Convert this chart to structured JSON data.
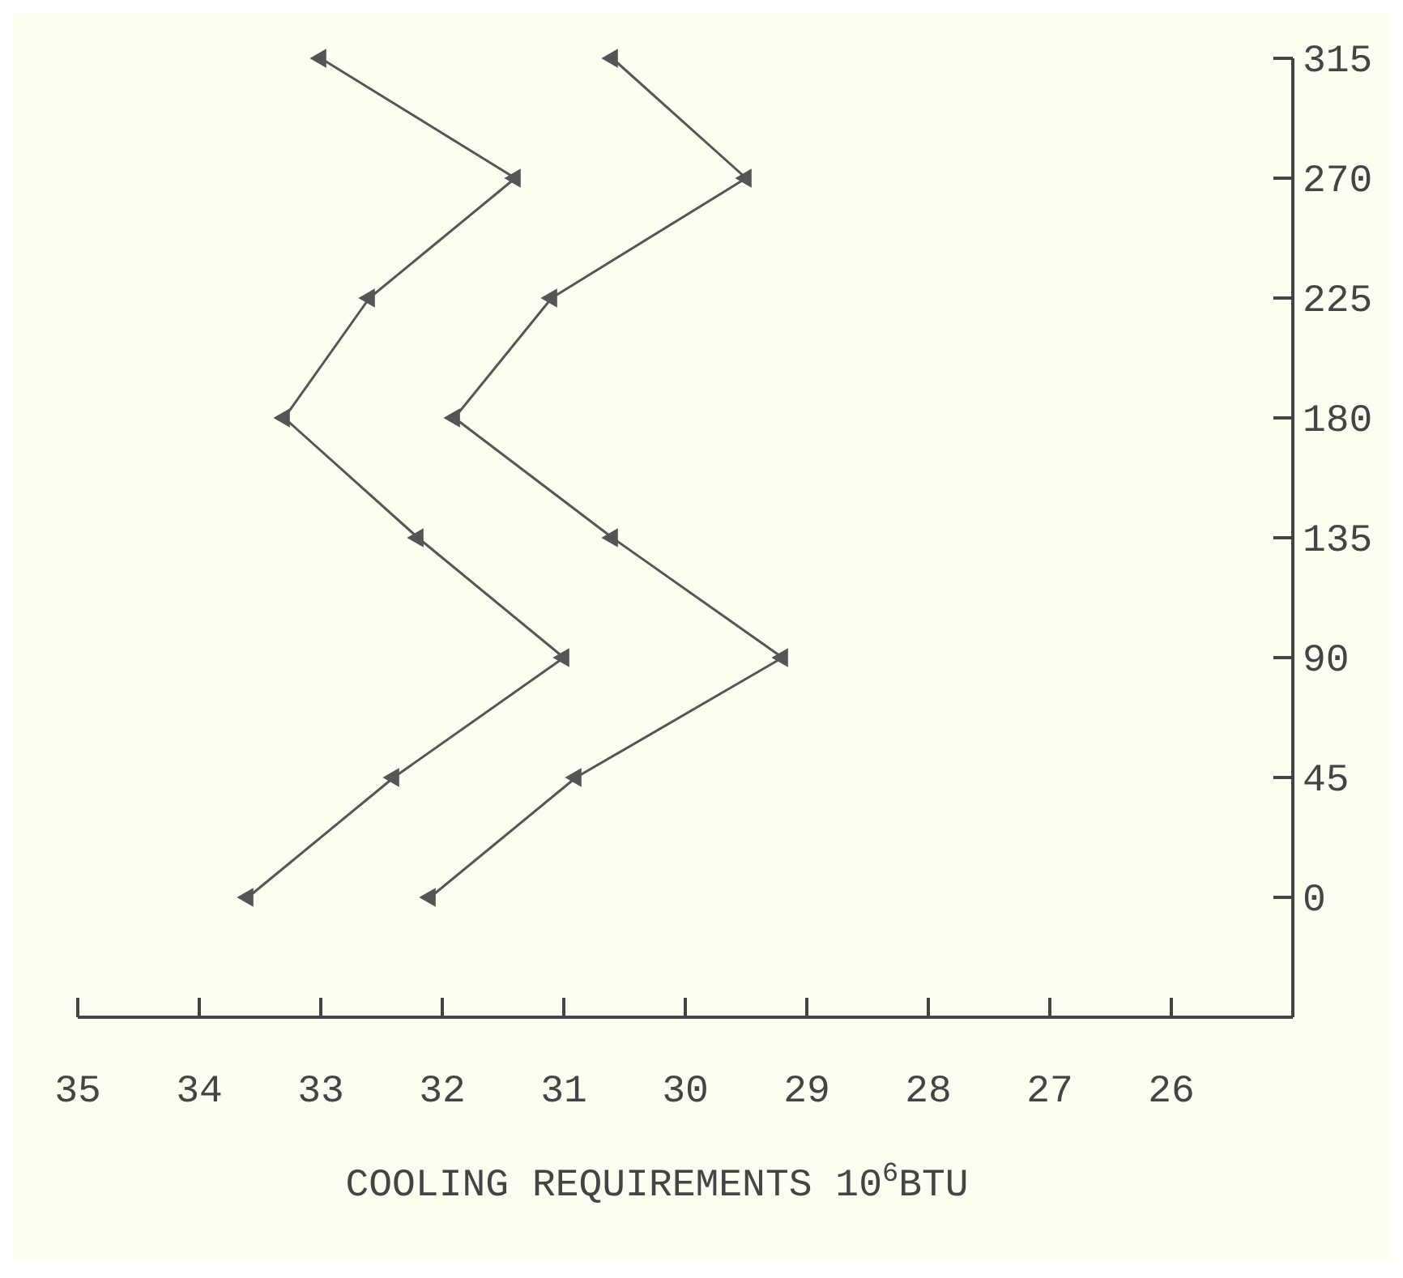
{
  "chart_data": {
    "type": "line",
    "xlabel": "COOLING REQUIREMENTS   10$^{6}$BTU",
    "xlim": [
      35,
      25
    ],
    "xticks": [
      35,
      34,
      33,
      32,
      31,
      30,
      29,
      28,
      27,
      26
    ],
    "ylim": [
      -45,
      315
    ],
    "yticks": [
      0,
      45,
      90,
      135,
      180,
      225,
      270,
      315
    ],
    "marker": "triangle",
    "line_style": "solid",
    "grid": false,
    "series": [
      {
        "color": "#555555",
        "x": [
          33.6,
          32.4,
          31.0,
          32.2,
          33.3,
          32.6,
          31.4,
          33.0
        ],
        "values": [
          0,
          45,
          90,
          135,
          180,
          225,
          270,
          315
        ]
      },
      {
        "color": "#555555",
        "x": [
          32.1,
          30.9,
          29.2,
          30.6,
          31.9,
          31.1,
          29.5,
          30.6
        ],
        "values": [
          0,
          45,
          90,
          135,
          180,
          225,
          270,
          315
        ]
      }
    ]
  }
}
